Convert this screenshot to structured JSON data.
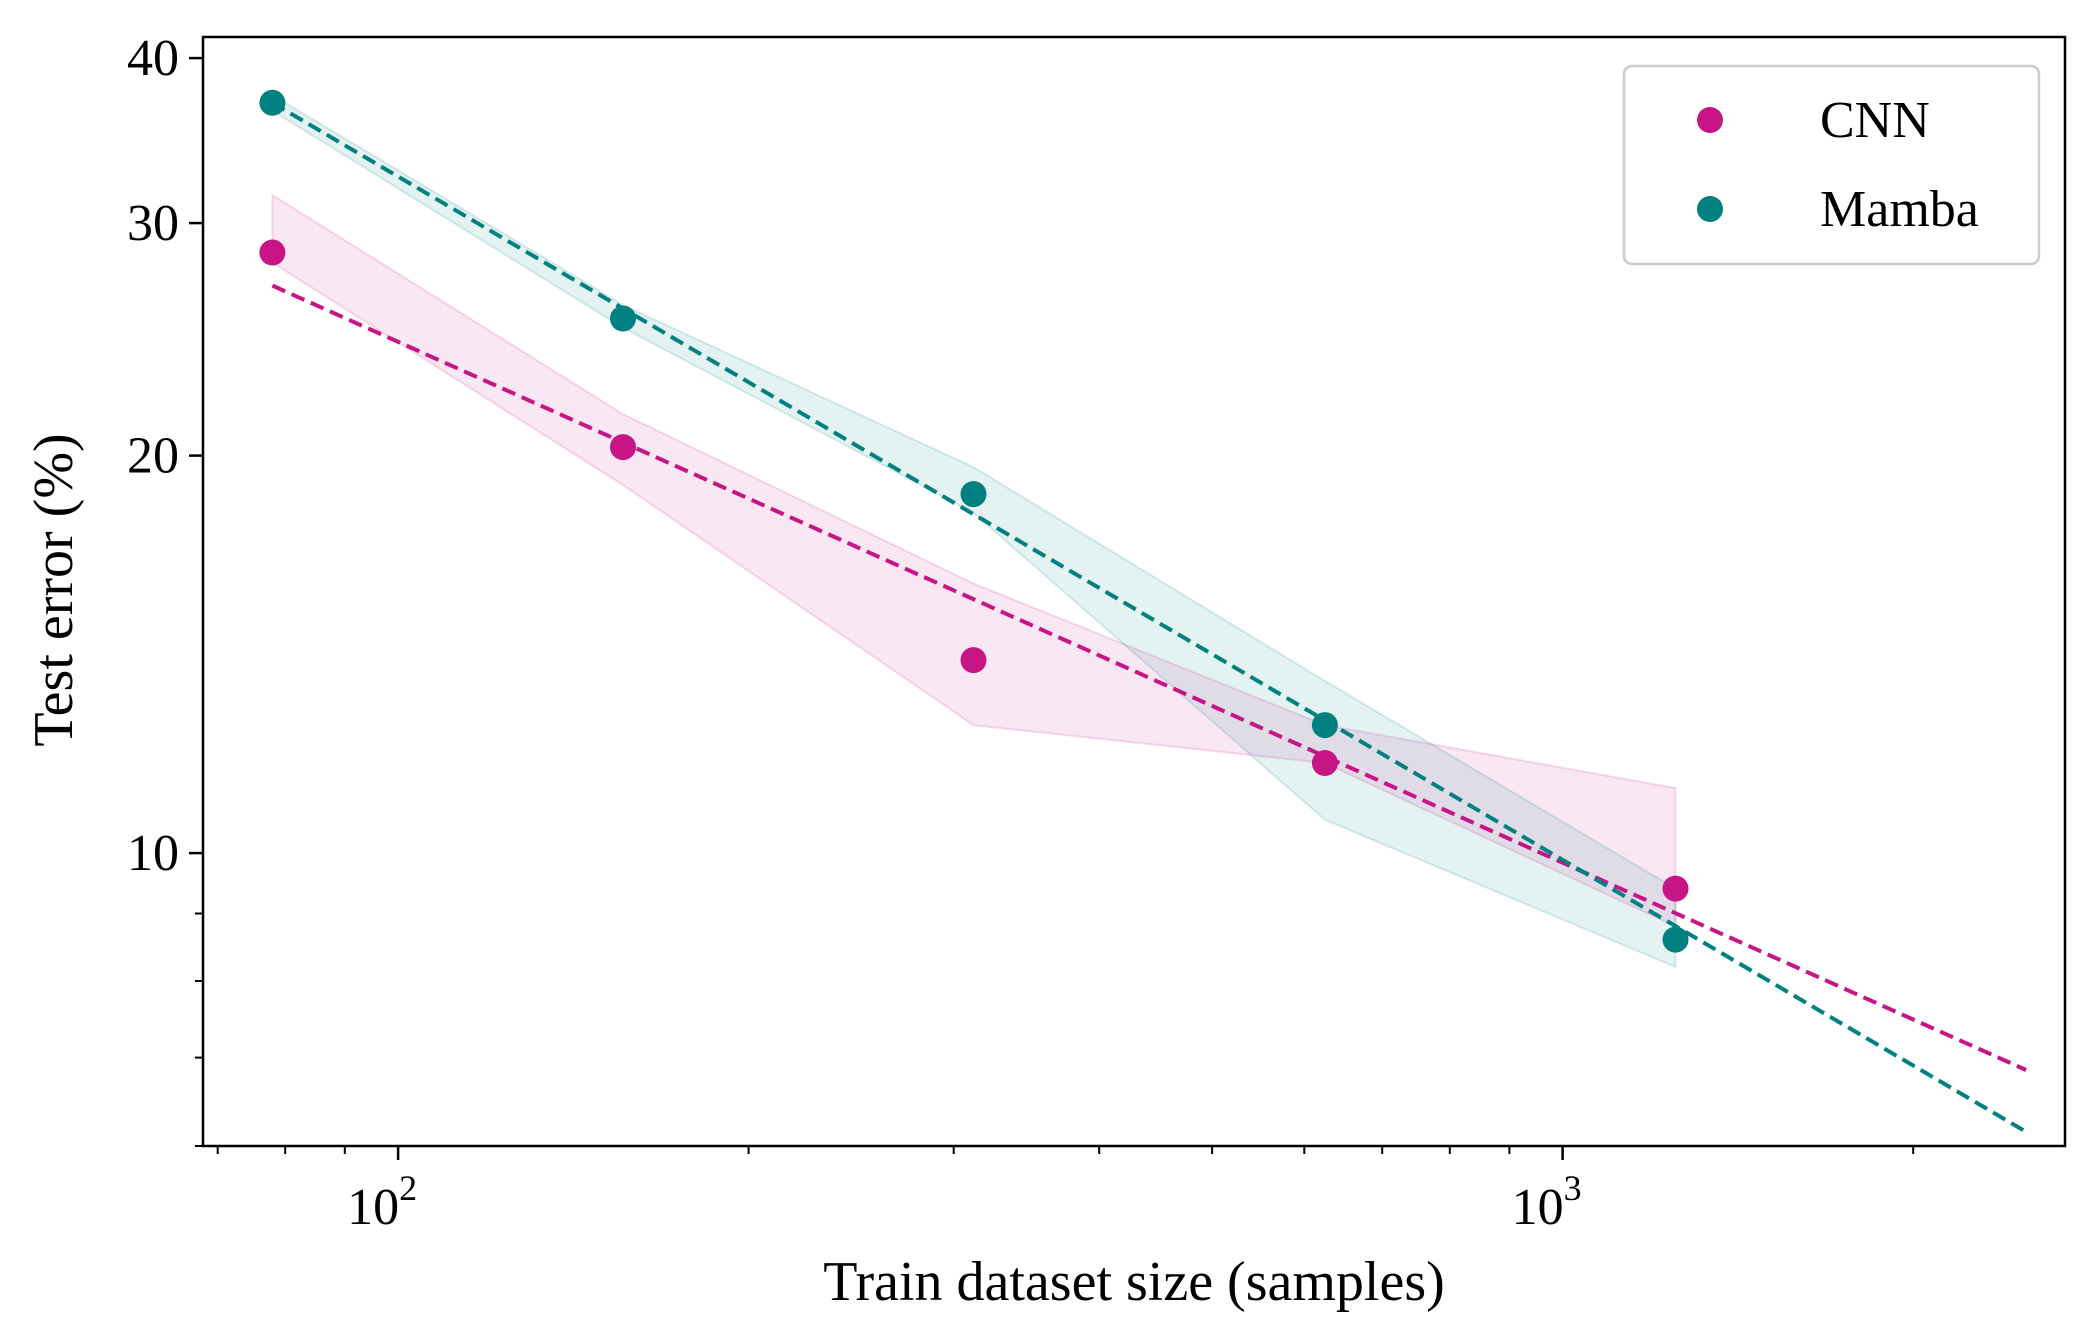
{
  "chart_data": {
    "type": "scatter",
    "xlabel": "Train dataset size (samples)",
    "ylabel": "Test error (%)",
    "x_scale": "log",
    "y_scale": "log",
    "xlim": [
      68,
      2700
    ],
    "ylim": [
      6.0,
      41.5
    ],
    "x_ticks": [
      {
        "value": 100,
        "base": "10",
        "exp": "2"
      },
      {
        "value": 1000,
        "base": "10",
        "exp": "3"
      }
    ],
    "y_ticks": [
      {
        "value": 10,
        "label": "10"
      },
      {
        "value": 20,
        "label": "20"
      },
      {
        "value": 30,
        "label": "30"
      },
      {
        "value": 40,
        "label": "40"
      }
    ],
    "legend_position": "top-right",
    "grid": false,
    "series": [
      {
        "name": "CNN",
        "color": "#C71585",
        "x": [
          78,
          156,
          312,
          625,
          1250
        ],
        "y": [
          28.5,
          20.3,
          14.0,
          11.7,
          9.4
        ],
        "band_upper": [
          31.5,
          21.5,
          16.0,
          12.5,
          11.2
        ],
        "band_lower": [
          28.0,
          19.0,
          12.5,
          11.7,
          8.8
        ],
        "fit_x": [
          78,
          2500
        ],
        "fit_y": [
          26.9,
          6.85
        ]
      },
      {
        "name": "Mamba",
        "color": "#008080",
        "x": [
          78,
          156,
          312,
          625,
          1250
        ],
        "y": [
          37.0,
          25.4,
          18.7,
          12.5,
          8.6
        ],
        "band_upper": [
          37.5,
          26.0,
          19.6,
          13.5,
          9.4
        ],
        "band_lower": [
          36.5,
          25.0,
          18.1,
          10.6,
          8.2
        ],
        "fit_x": [
          78,
          2500
        ],
        "fit_y": [
          37.0,
          6.15
        ]
      }
    ]
  }
}
